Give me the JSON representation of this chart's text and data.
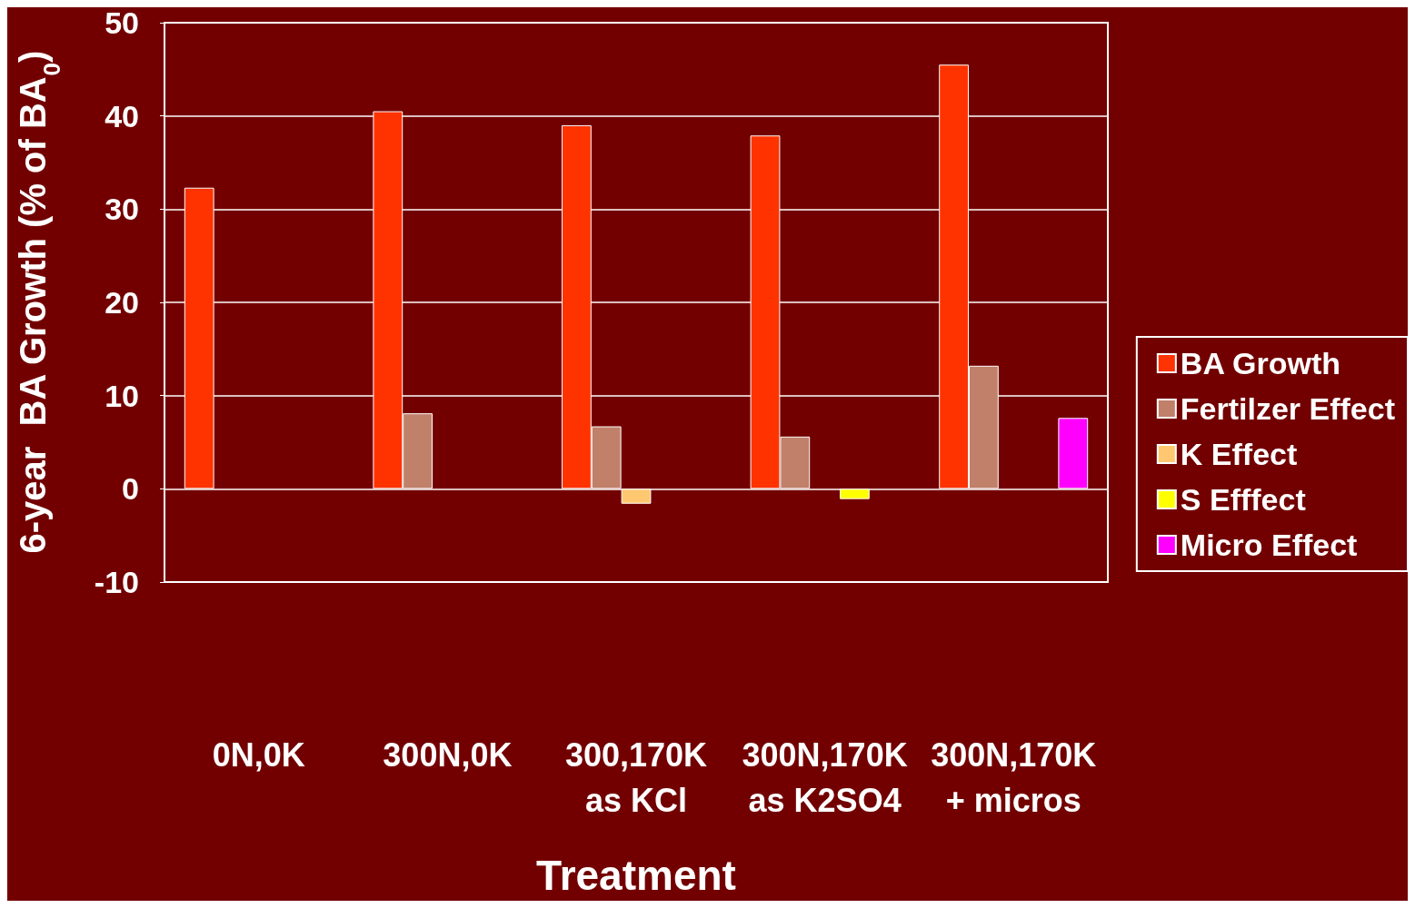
{
  "chart_data": {
    "type": "bar",
    "xlabel": "Treatment",
    "ylabel": "6-year  BA Growth (% of BA$_{0}$)",
    "categories": [
      "0N,0K",
      "300N,0K",
      "300,170K\nas KCl",
      "300N,170K\nas K2SO4",
      "300N,170K\n+ micros"
    ],
    "series": [
      {
        "name": "BA Growth",
        "color": "#ff3300",
        "values": [
          32.3,
          40.5,
          39.0,
          37.9,
          45.5
        ]
      },
      {
        "name": "Fertilzer Effect",
        "color": "#c0806a",
        "values": [
          null,
          8.1,
          6.7,
          5.6,
          13.2
        ]
      },
      {
        "name": "K Effect",
        "color": "#ffc870",
        "values": [
          null,
          null,
          -1.6,
          null,
          null
        ]
      },
      {
        "name": "S Efffect",
        "color": "#ffff00",
        "values": [
          null,
          null,
          null,
          -1.1,
          null
        ]
      },
      {
        "name": "Micro Effect",
        "color": "#ff00ff",
        "values": [
          null,
          null,
          null,
          null,
          7.6
        ]
      }
    ],
    "ylim": [
      -10,
      50
    ],
    "yticks": [
      -10,
      0,
      10,
      20,
      30,
      40,
      50
    ],
    "grid": "y",
    "legend": "right"
  }
}
